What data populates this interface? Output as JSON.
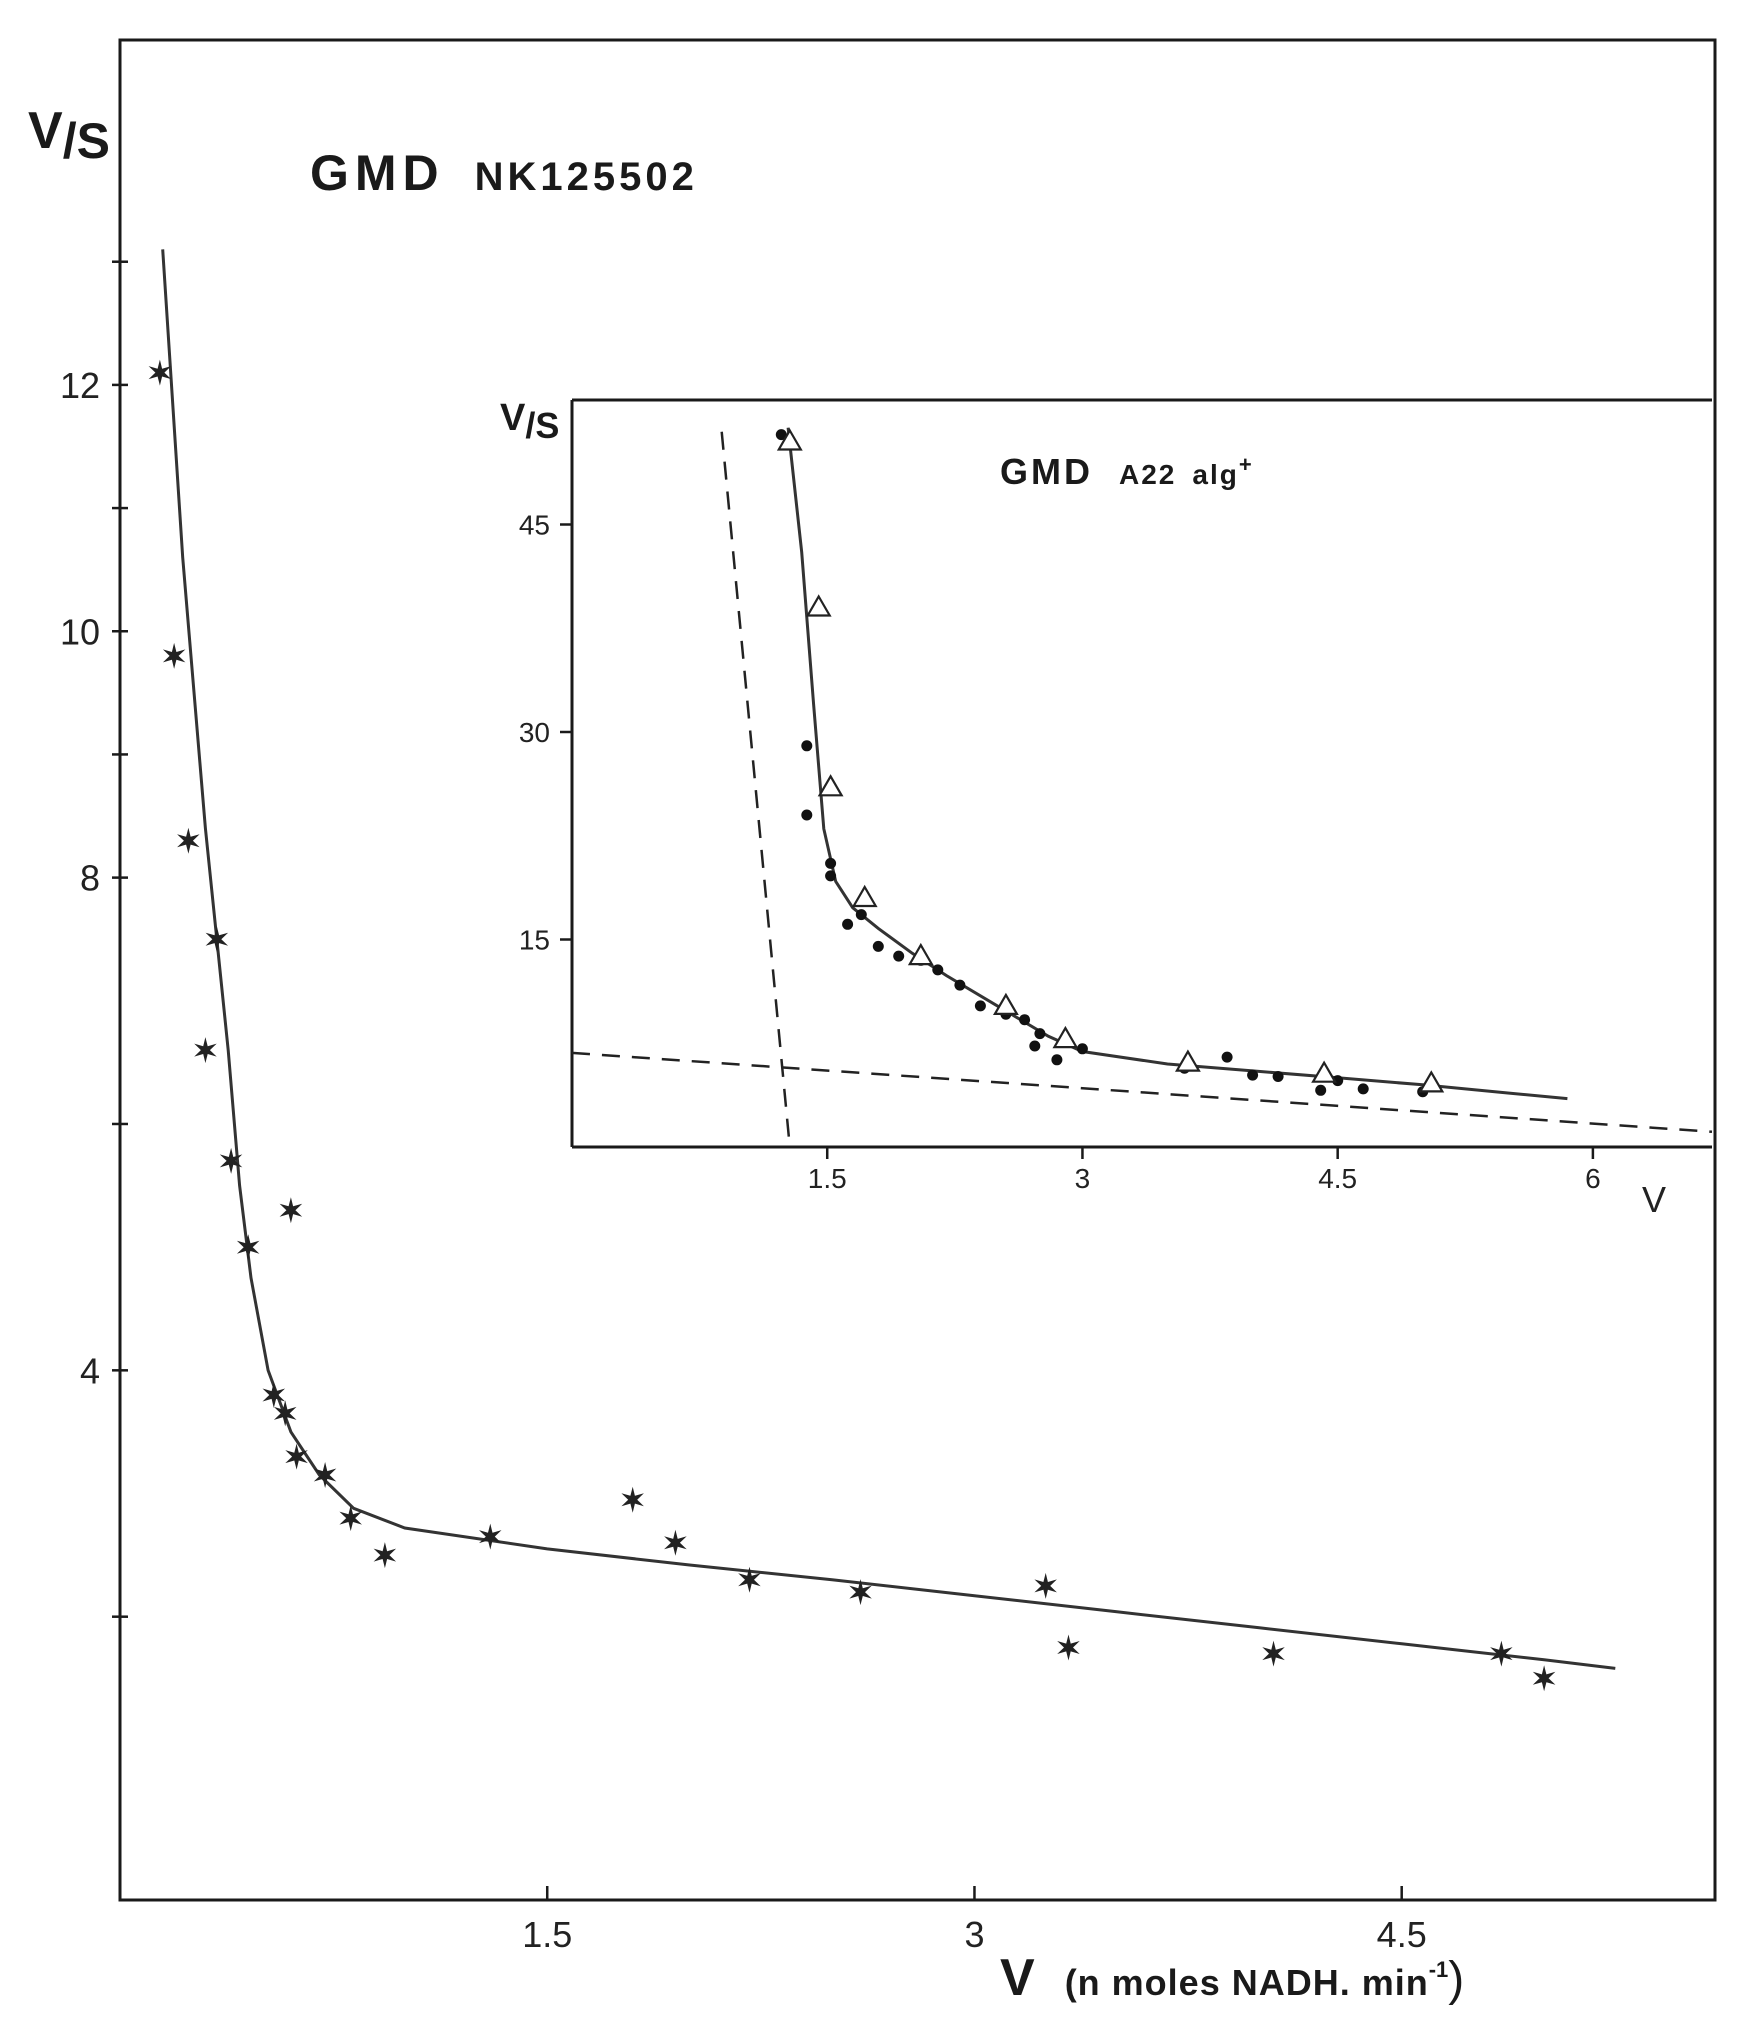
{
  "chart_data": [
    {
      "type": "scatter",
      "title": "GMD",
      "subtitle": "NK125502",
      "xlabel_main": "V",
      "xlabel_unit": "(n moles NADH. min",
      "xlabel_exp": "-1",
      "xlabel_close": ")",
      "ylabel_main": "V",
      "ylabel_sub": "/S",
      "xlim": [
        0,
        5.6
      ],
      "ylim": [
        -0.3,
        14.8
      ],
      "x_ticks": [
        {
          "value": 1.5,
          "label": "1.5"
        },
        {
          "value": 3,
          "label": "3"
        },
        {
          "value": 4.5,
          "label": "4.5"
        }
      ],
      "y_ticks": [
        {
          "value": 4,
          "label": "4"
        },
        {
          "value": 8,
          "label": "8"
        },
        {
          "value": 10,
          "label": "10"
        },
        {
          "value": 12,
          "label": "12"
        }
      ],
      "y_minor_ticks": [
        2,
        6,
        9,
        11,
        13
      ],
      "series": [
        {
          "marker": "star",
          "x": [
            0.14,
            0.19,
            0.24,
            0.34,
            0.3,
            0.39,
            0.45,
            0.6,
            0.54,
            0.58,
            0.62,
            0.72,
            0.81,
            0.93,
            1.3,
            1.8,
            1.95,
            2.21,
            2.6,
            3.25,
            3.33,
            4.05,
            4.85,
            5.0
          ],
          "y": [
            12.1,
            9.8,
            8.3,
            7.5,
            6.6,
            5.7,
            5.0,
            5.3,
            3.8,
            3.65,
            3.3,
            3.15,
            2.8,
            2.5,
            2.65,
            2.95,
            2.6,
            2.3,
            2.2,
            2.25,
            1.75,
            1.7,
            1.7,
            1.5
          ]
        }
      ],
      "fit_line": {
        "x": [
          0.15,
          0.22,
          0.3,
          0.38,
          0.42,
          0.46,
          0.52,
          0.6,
          0.7,
          0.82,
          1.0,
          1.5,
          2.0,
          2.5,
          3.0,
          3.5,
          4.0,
          4.5,
          5.0,
          5.25
        ],
        "y": [
          13.1,
          10.6,
          8.4,
          6.6,
          5.5,
          4.75,
          4.0,
          3.5,
          3.15,
          2.88,
          2.72,
          2.55,
          2.42,
          2.3,
          2.17,
          2.04,
          1.91,
          1.78,
          1.65,
          1.58
        ]
      }
    },
    {
      "type": "scatter",
      "title": "GMD",
      "subtitle": "A22",
      "subtitle2": "alg",
      "subtitle_sup": "+",
      "xlabel": "V",
      "ylabel_main": "V",
      "ylabel_sub": "/S",
      "xlim": [
        0,
        6.7
      ],
      "ylim": [
        0,
        54
      ],
      "x_ticks": [
        {
          "value": 1.5,
          "label": "1.5"
        },
        {
          "value": 3,
          "label": "3"
        },
        {
          "value": 4.5,
          "label": "4.5"
        },
        {
          "value": 6,
          "label": "6"
        }
      ],
      "y_ticks": [
        {
          "value": 15,
          "label": "15"
        },
        {
          "value": 30,
          "label": "30"
        },
        {
          "value": 45,
          "label": "45"
        }
      ],
      "series": [
        {
          "marker": "dot",
          "x": [
            1.23,
            1.38,
            1.38,
            1.52,
            1.52,
            1.62,
            1.7,
            1.8,
            1.92,
            2.05,
            2.15,
            2.28,
            2.4,
            2.55,
            2.66,
            2.72,
            2.75,
            2.85,
            3.0,
            3.6,
            3.85,
            4.0,
            4.15,
            4.4,
            4.5,
            4.65,
            5.0
          ],
          "y": [
            51.5,
            29.0,
            24.0,
            19.6,
            20.5,
            16.1,
            16.8,
            14.5,
            13.8,
            13.5,
            12.8,
            11.7,
            10.2,
            9.6,
            9.2,
            7.3,
            8.2,
            6.3,
            7.1,
            5.7,
            6.5,
            5.2,
            5.1,
            4.1,
            4.8,
            4.2,
            4.0
          ]
        },
        {
          "marker": "triangle",
          "x": [
            1.28,
            1.45,
            1.52,
            1.72,
            2.05,
            2.55,
            2.9,
            3.62,
            4.42,
            5.05
          ],
          "y": [
            51.0,
            39.0,
            26.0,
            18.0,
            13.8,
            10.2,
            7.8,
            6.1,
            5.3,
            4.6
          ]
        }
      ],
      "fit_line": {
        "x": [
          1.27,
          1.35,
          1.42,
          1.48,
          1.55,
          1.65,
          1.8,
          2.0,
          2.2,
          2.5,
          2.8,
          3.0,
          3.5,
          4.0,
          4.5,
          5.0,
          5.5,
          5.85
        ],
        "y": [
          52.0,
          43.0,
          32.0,
          23.0,
          19.2,
          17.3,
          15.8,
          14.0,
          12.4,
          10.2,
          8.0,
          6.9,
          6.0,
          5.5,
          5.0,
          4.5,
          3.9,
          3.5
        ]
      },
      "dashed_lines": [
        {
          "x": [
            0.88,
            1.28
          ],
          "y": [
            51.7,
            0
          ]
        },
        {
          "x": [
            0,
            6.7
          ],
          "y": [
            6.8,
            1.1
          ]
        }
      ]
    }
  ]
}
